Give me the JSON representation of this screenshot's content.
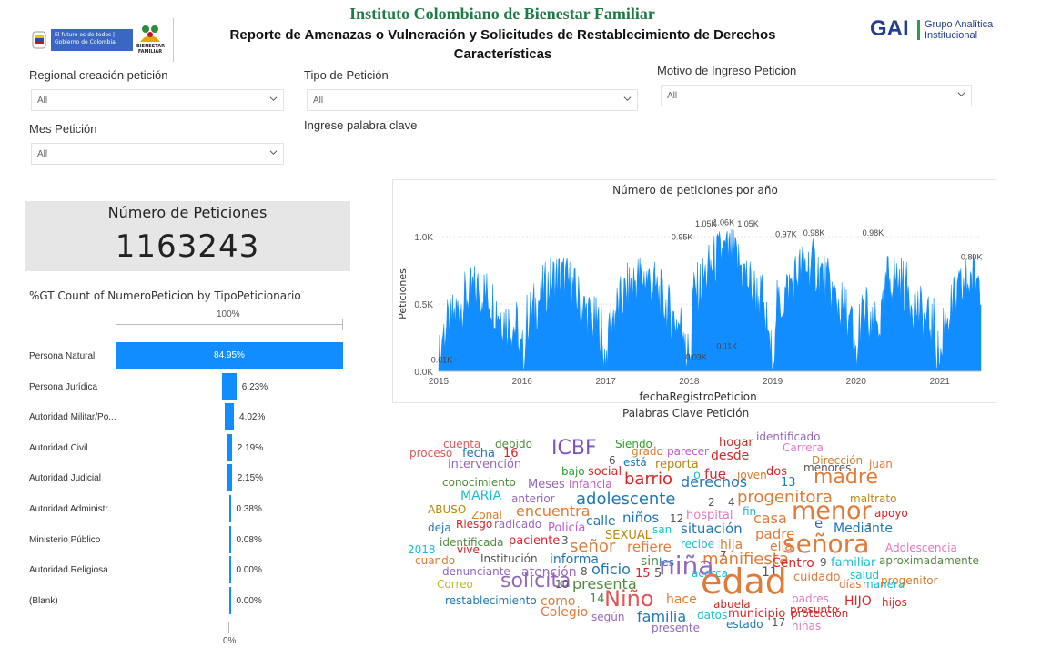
{
  "header": {
    "title": "Instituto Colombiano de Bienestar Familiar",
    "subtitle": "Reporte de Amenazas o Vulneración y Solicitudes de Restablecimiento de Derechos Características",
    "gov_badge": "El futuro es de todos | Gobierno de Colombia",
    "icbf_logo_text": "BIENESTAR FAMILIAR",
    "gai_logo": "GAI",
    "gai_text_line1": "Grupo Analítica",
    "gai_text_line2": "Institucional",
    "colors": {
      "title": "#1e7a46",
      "gai": "#23408e",
      "accent": "#118dff"
    }
  },
  "filters": {
    "regional": {
      "label": "Regional creación petición",
      "value": "All"
    },
    "tipo": {
      "label": "Tipo de Petición",
      "value": "All"
    },
    "motivo": {
      "label": "Motivo de Ingreso Peticion",
      "value": "All"
    },
    "mes": {
      "label": "Mes Petición",
      "value": "All"
    },
    "keyword": {
      "label": "Ingrese palabra clave"
    }
  },
  "kpi": {
    "label": "Número de Peticiones",
    "value": "1163243"
  },
  "bar_chart": {
    "title": "%GT Count of NumeroPeticion by TipoPeticionario",
    "axis_top": "100%",
    "axis_bottom": "0%"
  },
  "chart_data": [
    {
      "type": "bar",
      "orientation": "horizontal",
      "title": "%GT Count of NumeroPeticion by TipoPeticionario",
      "categories": [
        "Persona Natural",
        "Persona Jurídica",
        "Autoridad Militar/Po...",
        "Autoridad Civil",
        "Autoridad Judicial",
        "Autoridad Administr...",
        "Ministerio Público",
        "Autoridad Religiosa",
        "(Blank)"
      ],
      "values": [
        84.95,
        6.23,
        4.02,
        2.19,
        2.15,
        0.38,
        0.08,
        0.0,
        0.0
      ],
      "value_labels": [
        "84.95%",
        "6.23%",
        "4.02%",
        "2.19%",
        "2.15%",
        "0.38%",
        "0.08%",
        "0.00%",
        "0.00%"
      ],
      "xlim": [
        0,
        100
      ]
    },
    {
      "type": "area",
      "title": "Número de peticiones por año",
      "xlabel": "fechaRegistroPeticion",
      "ylabel": "Peticiones",
      "x_ticks": [
        "2015",
        "2016",
        "2017",
        "2018",
        "2019",
        "2020",
        "2021"
      ],
      "y_ticks": [
        "0.0K",
        "0.5K",
        "1.0K"
      ],
      "ylim": [
        0,
        1150
      ],
      "xlim": [
        "2015-01-01",
        "2021-06-30"
      ],
      "color": "#118dff",
      "annotations": [
        {
          "label": "0.01K",
          "date": "2015-01-15",
          "value": 10
        },
        {
          "label": "0.95K",
          "date": "2017-12-01",
          "value": 950
        },
        {
          "label": "1.05K",
          "date": "2018-03-15",
          "value": 1050
        },
        {
          "label": "1.06K",
          "date": "2018-06-01",
          "value": 1060
        },
        {
          "label": "1.05K",
          "date": "2018-09-15",
          "value": 1050
        },
        {
          "label": "0.03K",
          "date": "2018-02-01",
          "value": 30
        },
        {
          "label": "0.11K",
          "date": "2018-06-15",
          "value": 110
        },
        {
          "label": "0.97K",
          "date": "2019-03-01",
          "value": 970
        },
        {
          "label": "0.98K",
          "date": "2019-07-01",
          "value": 980
        },
        {
          "label": "0.98K",
          "date": "2020-03-15",
          "value": 980
        },
        {
          "label": "0.80K",
          "date": "2021-05-20",
          "value": 800
        }
      ]
    }
  ],
  "wordcloud": {
    "title": "Palabras Clave Petición",
    "words": [
      {
        "t": "cuenta",
        "c": "#e15759"
      },
      {
        "t": "debido",
        "c": "#4e8a3e"
      },
      {
        "t": "Siendo",
        "c": "#2ca02c"
      },
      {
        "t": "hogar",
        "c": "#d62728"
      },
      {
        "t": "identificado",
        "c": "#9467bd"
      },
      {
        "t": "proceso",
        "c": "#e15759"
      },
      {
        "t": "fecha",
        "c": "#1f77b4"
      },
      {
        "t": "16",
        "c": "#d62728"
      },
      {
        "t": "ICBF",
        "c": "#7b52c4"
      },
      {
        "t": "grado",
        "c": "#d67c2a"
      },
      {
        "t": "parecer",
        "c": "#c05ccf"
      },
      {
        "t": "desde",
        "c": "#d62728"
      },
      {
        "t": "Carrera",
        "c": "#e377c2"
      },
      {
        "t": "intervención",
        "c": "#9467bd"
      },
      {
        "t": "6",
        "c": "#555"
      },
      {
        "t": "está",
        "c": "#1f77b4"
      },
      {
        "t": "reporta",
        "c": "#b8860b"
      },
      {
        "t": "Dirección",
        "c": "#d67c2a"
      },
      {
        "t": "menores",
        "c": "#555"
      },
      {
        "t": "juan",
        "c": "#e07b39"
      },
      {
        "t": "bajo",
        "c": "#2ca02c"
      },
      {
        "t": "social",
        "c": "#d62728"
      },
      {
        "t": "o",
        "c": "#17becf"
      },
      {
        "t": "fue",
        "c": "#d62728"
      },
      {
        "t": "joven",
        "c": "#d67c2a"
      },
      {
        "t": "dos",
        "c": "#d62728"
      },
      {
        "t": "conocimiento",
        "c": "#4e8a3e"
      },
      {
        "t": "Meses",
        "c": "#9467bd"
      },
      {
        "t": "Infancia",
        "c": "#c05ccf"
      },
      {
        "t": "barrio",
        "c": "#d62728"
      },
      {
        "t": "derechos",
        "c": "#1f77b4"
      },
      {
        "t": "13",
        "c": "#1f77b4"
      },
      {
        "t": "madre",
        "c": "#e07b39"
      },
      {
        "t": "MARIA",
        "c": "#17becf"
      },
      {
        "t": "anterior",
        "c": "#9467bd"
      },
      {
        "t": "adolescente",
        "c": "#1f77b4"
      },
      {
        "t": "2",
        "c": "#555"
      },
      {
        "t": "4",
        "c": "#555"
      },
      {
        "t": "progenitora",
        "c": "#e07b39"
      },
      {
        "t": "maltrato",
        "c": "#b8860b"
      },
      {
        "t": "ABUSO",
        "c": "#b8860b"
      },
      {
        "t": "Zonal",
        "c": "#d67c2a"
      },
      {
        "t": "encuentra",
        "c": "#e07b39"
      },
      {
        "t": "niños",
        "c": "#1f77b4"
      },
      {
        "t": "12",
        "c": "#555"
      },
      {
        "t": "hospital",
        "c": "#e377c2"
      },
      {
        "t": "fin",
        "c": "#17becf"
      },
      {
        "t": "menor",
        "c": "#e07b39"
      },
      {
        "t": "apoyo",
        "c": "#d62728"
      },
      {
        "t": "Riesgo",
        "c": "#d62728"
      },
      {
        "t": "radicado",
        "c": "#9467bd"
      },
      {
        "t": "calle",
        "c": "#1f77b4"
      },
      {
        "t": "casa",
        "c": "#e07b39"
      },
      {
        "t": "e",
        "c": "#1f77b4"
      },
      {
        "t": "deja",
        "c": "#1f77b4"
      },
      {
        "t": "Policía",
        "c": "#c05ccf"
      },
      {
        "t": "san",
        "c": "#17becf"
      },
      {
        "t": "situación",
        "c": "#1f77b4"
      },
      {
        "t": "padre",
        "c": "#e07b39"
      },
      {
        "t": "Mediante",
        "c": "#1f77b4"
      },
      {
        "t": "identificada",
        "c": "#4e8a3e"
      },
      {
        "t": "paciente",
        "c": "#d62728"
      },
      {
        "t": "3",
        "c": "#555"
      },
      {
        "t": "SEXUAL",
        "c": "#b8860b"
      },
      {
        "t": "recibe",
        "c": "#17becf"
      },
      {
        "t": "hija",
        "c": "#e07b39"
      },
      {
        "t": "ella",
        "c": "#e07b39"
      },
      {
        "t": "señora",
        "c": "#e07b39"
      },
      {
        "t": "2018",
        "c": "#17becf"
      },
      {
        "t": "vive",
        "c": "#d62728"
      },
      {
        "t": "señor",
        "c": "#e07b39"
      },
      {
        "t": "refiere",
        "c": "#e07b39"
      },
      {
        "t": "Adolescencia",
        "c": "#e377c2"
      },
      {
        "t": "cuando",
        "c": "#d67c2a"
      },
      {
        "t": "Institución",
        "c": "#555"
      },
      {
        "t": "informa",
        "c": "#1f77b4"
      },
      {
        "t": "sin",
        "c": "#4e8a3e"
      },
      {
        "t": "les",
        "c": "#1f77b4"
      },
      {
        "t": "manifiesta",
        "c": "#e07b39"
      },
      {
        "t": "Centro",
        "c": "#d62728"
      },
      {
        "t": "9",
        "c": "#555"
      },
      {
        "t": "familiar",
        "c": "#17becf"
      },
      {
        "t": "aproximadamente",
        "c": "#4e8a3e"
      },
      {
        "t": "denunciante",
        "c": "#9467bd"
      },
      {
        "t": "atención",
        "c": "#9467bd"
      },
      {
        "t": "8",
        "c": "#555"
      },
      {
        "t": "oficio",
        "c": "#1f77b4"
      },
      {
        "t": "15",
        "c": "#d62728"
      },
      {
        "t": "5",
        "c": "#555"
      },
      {
        "t": "niña",
        "c": "#9467bd"
      },
      {
        "t": "acerca",
        "c": "#17becf"
      },
      {
        "t": "11",
        "c": "#555"
      },
      {
        "t": "salud",
        "c": "#17becf"
      },
      {
        "t": "Correo",
        "c": "#bcbd22"
      },
      {
        "t": "solicita",
        "c": "#9467bd"
      },
      {
        "t": "10",
        "c": "#555"
      },
      {
        "t": "presenta",
        "c": "#4e8a3e"
      },
      {
        "t": "edad",
        "c": "#e07b39"
      },
      {
        "t": "cuidado",
        "c": "#e07b39"
      },
      {
        "t": "días",
        "c": "#e07b39"
      },
      {
        "t": "manera",
        "c": "#17becf"
      },
      {
        "t": "progenitor",
        "c": "#d67c2a"
      },
      {
        "t": "restablecimiento",
        "c": "#1f77b4"
      },
      {
        "t": "como",
        "c": "#e07b39"
      },
      {
        "t": "14",
        "c": "#4e8a3e"
      },
      {
        "t": "Niño",
        "c": "#e15759"
      },
      {
        "t": "hace",
        "c": "#e07b39"
      },
      {
        "t": "padres",
        "c": "#e377c2"
      },
      {
        "t": "HIJO",
        "c": "#d62728"
      },
      {
        "t": "hijos",
        "c": "#d62728"
      },
      {
        "t": "Colegio",
        "c": "#e07b39"
      },
      {
        "t": "abuela",
        "c": "#d62728"
      },
      {
        "t": "presunto",
        "c": "#d62728"
      },
      {
        "t": "datos",
        "c": "#17becf"
      },
      {
        "t": "municipio",
        "c": "#d62728"
      },
      {
        "t": "protección",
        "c": "#d62728"
      },
      {
        "t": "según",
        "c": "#9467bd"
      },
      {
        "t": "familia",
        "c": "#1f77b4"
      },
      {
        "t": "estado",
        "c": "#1f77b4"
      },
      {
        "t": "17",
        "c": "#555"
      },
      {
        "t": "niñas",
        "c": "#e377c2"
      },
      {
        "t": "presente",
        "c": "#9467bd"
      },
      {
        "t": "1",
        "c": "#555"
      },
      {
        "t": "7",
        "c": "#555"
      }
    ]
  }
}
